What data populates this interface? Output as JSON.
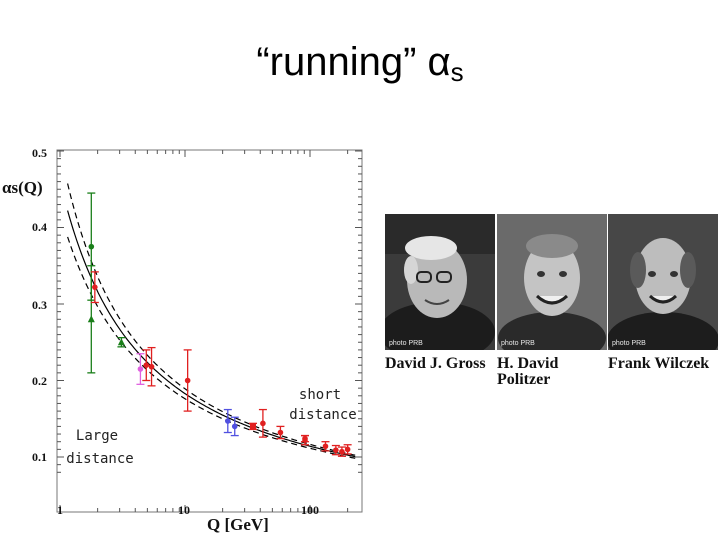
{
  "slide": {
    "title_main": "“running” α",
    "title_sub": "s"
  },
  "chart_data": {
    "type": "scatter",
    "title": "",
    "xlabel": "Q [GeV]",
    "ylabel": "αs(Q)",
    "x_scale": "log",
    "xlim": [
      1,
      230
    ],
    "ylim": [
      0.08,
      0.5
    ],
    "x_ticks": [
      "1",
      "10",
      "100"
    ],
    "y_ticks": [
      "0.1",
      "0.2",
      "0.3",
      "0.4",
      "0.5"
    ],
    "grid": false,
    "curves": [
      {
        "name": "central",
        "style": "solid",
        "lambda": 0.22
      },
      {
        "name": "upper",
        "style": "dashed",
        "lambda": 0.25
      },
      {
        "name": "lower",
        "style": "dashed",
        "lambda": 0.19
      }
    ],
    "points": [
      {
        "x": 1.78,
        "y": 0.375,
        "yerr": 0.07,
        "marker": "circle",
        "color": "#1a7f1a"
      },
      {
        "x": 1.78,
        "y": 0.28,
        "yerr": 0.07,
        "marker": "triangle",
        "color": "#1a7f1a"
      },
      {
        "x": 1.9,
        "y": 0.322,
        "yerr": 0.02,
        "marker": "circle",
        "color": "#e02020"
      },
      {
        "x": 3.1,
        "y": 0.25,
        "yerr": 0.006,
        "marker": "triangle",
        "color": "#1a7f1a"
      },
      {
        "x": 4.4,
        "y": 0.215,
        "yerr": 0.02,
        "marker": "circle",
        "color": "#e060e0"
      },
      {
        "x": 4.9,
        "y": 0.22,
        "yerr": 0.02,
        "marker": "circle",
        "color": "#e02020"
      },
      {
        "x": 5.4,
        "y": 0.218,
        "yerr": 0.025,
        "marker": "circle",
        "color": "#e02020"
      },
      {
        "x": 10.5,
        "y": 0.2,
        "yerr": 0.04,
        "marker": "circle",
        "color": "#e02020"
      },
      {
        "x": 22,
        "y": 0.147,
        "yerr": 0.015,
        "marker": "circle",
        "color": "#5050e0"
      },
      {
        "x": 25,
        "y": 0.14,
        "yerr": 0.012,
        "marker": "circle",
        "color": "#5050e0"
      },
      {
        "x": 35,
        "y": 0.14,
        "yerr": 0.004,
        "marker": "square",
        "color": "#e02020"
      },
      {
        "x": 42,
        "y": 0.144,
        "yerr": 0.018,
        "marker": "circle",
        "color": "#e02020"
      },
      {
        "x": 58,
        "y": 0.132,
        "yerr": 0.008,
        "marker": "circle",
        "color": "#e02020"
      },
      {
        "x": 91.2,
        "y": 0.124,
        "yerr": 0.004,
        "marker": "circle",
        "color": "#e02020"
      },
      {
        "x": 91.2,
        "y": 0.122,
        "yerr": 0.006,
        "marker": "circle",
        "color": "#e02020"
      },
      {
        "x": 133,
        "y": 0.114,
        "yerr": 0.006,
        "marker": "circle",
        "color": "#e02020"
      },
      {
        "x": 161,
        "y": 0.109,
        "yerr": 0.006,
        "marker": "circle",
        "color": "#e02020"
      },
      {
        "x": 180,
        "y": 0.107,
        "yerr": 0.006,
        "marker": "circle",
        "color": "#e02020"
      },
      {
        "x": 200,
        "y": 0.11,
        "yerr": 0.006,
        "marker": "circle",
        "color": "#e02020"
      }
    ],
    "annotations": {
      "short": [
        "short",
        "distance"
      ],
      "large": [
        "Large",
        "distance"
      ]
    }
  },
  "photos": [
    {
      "credit": "photo PRB",
      "name_line1": "David J. Gross",
      "name_line2": ""
    },
    {
      "credit": "photo PRB",
      "name_line1": "H. David",
      "name_line2": "Politzer"
    },
    {
      "credit": "photo PRB",
      "name_line1": "Frank Wilczek",
      "name_line2": ""
    }
  ]
}
